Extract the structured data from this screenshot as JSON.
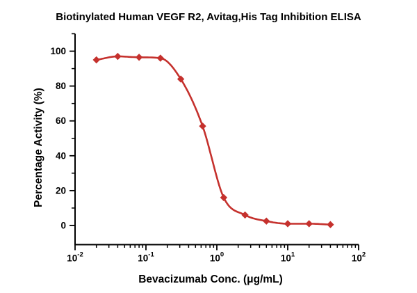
{
  "chart_data": {
    "type": "scatter",
    "title": "Biotinylated Human VEGF R2, Avitag,His Tag Inhibition ELISA",
    "xlabel": "Bevacizumab Conc. (μg/mL)",
    "ylabel": "Percentage Activity (%)",
    "x_scale": "log10",
    "x": [
      0.02,
      0.04,
      0.08,
      0.16,
      0.31,
      0.63,
      1.25,
      2.5,
      5,
      10,
      20,
      40
    ],
    "y": [
      95,
      97,
      96.5,
      96,
      84,
      57,
      16,
      6,
      2.5,
      1,
      1,
      0.5
    ],
    "xlim": [
      0.01,
      100
    ],
    "ylim": [
      -11,
      110
    ],
    "x_ticks_major_exponents": [
      -2,
      -1,
      0,
      1,
      2
    ],
    "x_minor_ticks_per_decade": [
      2,
      3,
      4,
      5,
      6,
      7,
      8,
      9
    ],
    "y_ticks_major": [
      0,
      20,
      40,
      60,
      80,
      100
    ],
    "y_ticks_minor": [
      10,
      30,
      50,
      70,
      90,
      110
    ],
    "grid": false,
    "legend": "none",
    "marker": "diamond",
    "curve": "smooth-sigmoid-fit-through-points",
    "series_color": "#c5312d",
    "axis_color": "#000000",
    "background_color": "#ffffff"
  }
}
